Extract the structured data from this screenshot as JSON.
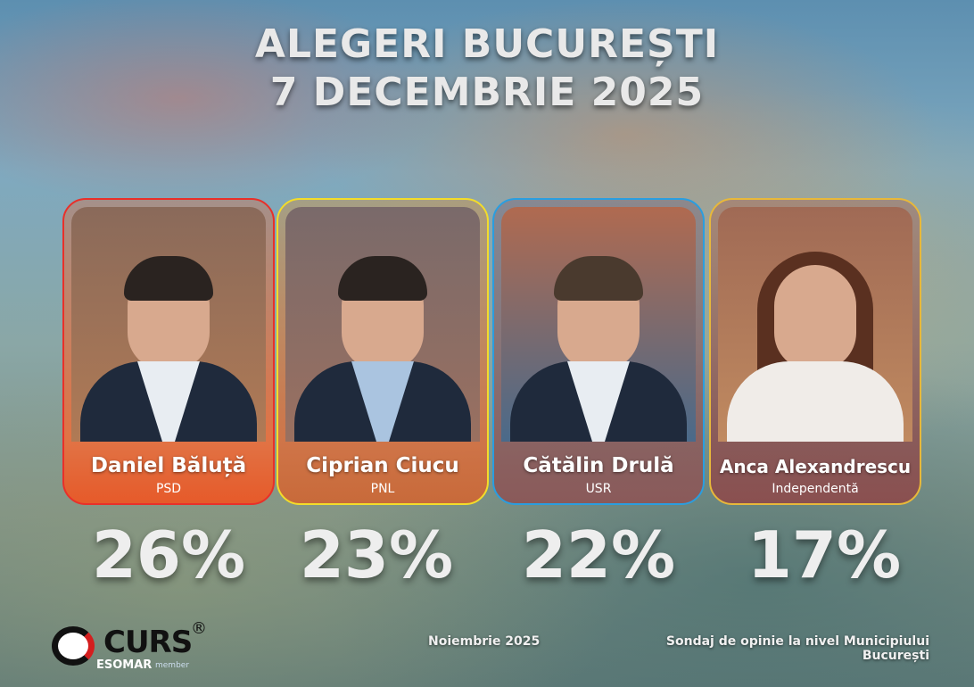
{
  "header": {
    "line1": "ALEGERI BUCUREȘTI",
    "line2": "7 DECEMBRIE 2025"
  },
  "candidates": [
    {
      "name": "Daniel Băluță",
      "party": "PSD",
      "percent": "26%",
      "value": 26,
      "color": "#e8302a"
    },
    {
      "name": "Ciprian Ciucu",
      "party": "PNL",
      "percent": "23%",
      "value": 23,
      "color": "#f3dc2a"
    },
    {
      "name": "Cătălin Drulă",
      "party": "USR",
      "percent": "22%",
      "value": 22,
      "color": "#2a9ee0"
    },
    {
      "name": "Anca Alexandrescu",
      "party": "Independentă",
      "percent": "17%",
      "value": 17,
      "color": "#e8b83a"
    }
  ],
  "footer": {
    "logo": "CURS",
    "registered": "®",
    "esomar": "ESOMAR",
    "member": "member",
    "date": "Noiembrie 2025",
    "note_line1": "Sondaj de opinie la nivel Municipiului",
    "note_line2": "București"
  }
}
